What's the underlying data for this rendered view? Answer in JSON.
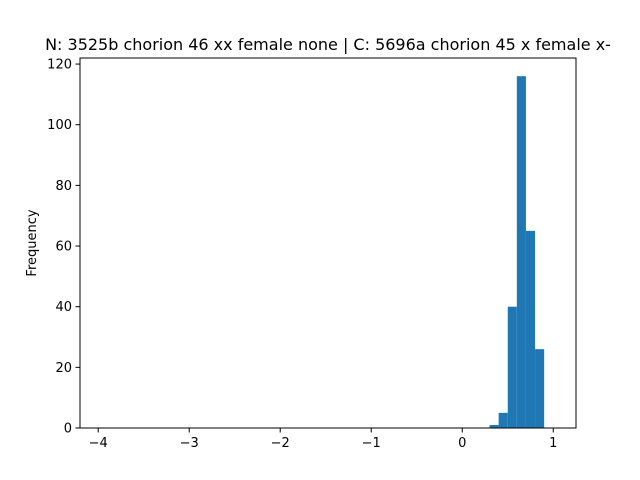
{
  "chart_data": {
    "type": "bar",
    "title": "N: 3525b chorion 46 xx female none | C: 5696a chorion 45 x female x-",
    "xlabel": "",
    "ylabel": "Frequency",
    "xlim": [
      -4.2,
      1.25
    ],
    "ylim": [
      0,
      122
    ],
    "x_ticks": [
      -4,
      -3,
      -2,
      -1,
      0,
      1
    ],
    "x_tick_labels": [
      "−4",
      "−3",
      "−2",
      "−1",
      "0",
      "1"
    ],
    "y_ticks": [
      0,
      20,
      40,
      60,
      80,
      100,
      120
    ],
    "y_tick_labels": [
      "0",
      "20",
      "40",
      "60",
      "80",
      "100",
      "120"
    ],
    "bins": [
      {
        "x0": 0.3,
        "x1": 0.4,
        "count": 1
      },
      {
        "x0": 0.4,
        "x1": 0.5,
        "count": 5
      },
      {
        "x0": 0.5,
        "x1": 0.6,
        "count": 40
      },
      {
        "x0": 0.6,
        "x1": 0.7,
        "count": 116
      },
      {
        "x0": 0.7,
        "x1": 0.8,
        "count": 65
      },
      {
        "x0": 0.8,
        "x1": 0.9,
        "count": 26
      }
    ],
    "bar_color": "#1f77b4",
    "grid": false,
    "legend": "none"
  }
}
